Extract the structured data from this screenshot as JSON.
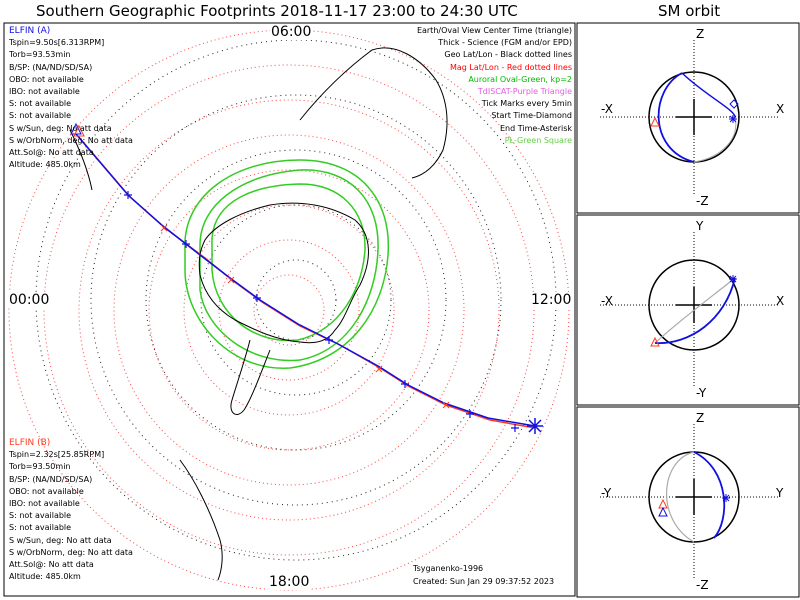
{
  "title": "Southern Geographic Footprints 2018-11-17 23:00 to 24:30 UTC",
  "orbit_panel_title": "SM orbit",
  "hour_labels": {
    "top": "06:00",
    "left": "00:00",
    "right": "12:00",
    "bottom": "18:00"
  },
  "satellite_a": {
    "name": "ELFIN (A)",
    "lines": [
      "Tspin=9.50s[6.313RPM]",
      "Torb=93.53min",
      "B/SP: (NA/ND/SD/SA)",
      "OBO: not available",
      "IBO: not available",
      "S: not available",
      "S: not available",
      "S w/Sun, deg: No att data",
      "S w/OrbNorm, deg: No att data",
      "Att.Sol@: No att data",
      "Altitude: 485.0km"
    ]
  },
  "satellite_b": {
    "name": "ELFIN (B)",
    "lines": [
      "Tspin=2.32s[25.85RPM]",
      "Torb=93.50min",
      "B/SP: (NA/ND/SD/SA)",
      "OBO: not available",
      "IBO: not available",
      "S: not available",
      "S: not available",
      "S w/Sun, deg: No att data",
      "S w/OrbNorm, deg: No att data",
      "Att.Sol@: No att data",
      "Altitude: 485.0km"
    ]
  },
  "legend": [
    {
      "text": "Earth/Oval View Center Time (triangle)",
      "color": "#000000"
    },
    {
      "text": "Thick - Science (FGM and/or EPD)",
      "color": "#000000"
    },
    {
      "text": "Geo Lat/Lon - Black dotted lines",
      "color": "#000000"
    },
    {
      "text": "Mag Lat/Lon - Red dotted lines",
      "color": "#ff0000"
    },
    {
      "text": "Auroral Oval-Green, kp=2",
      "color": "#00bb00"
    },
    {
      "text": "TdISCAT-Purple Triangle",
      "color": "#e060e0"
    },
    {
      "text": "Tick Marks every 5min",
      "color": "#000000"
    },
    {
      "text": "Start Time-Diamond",
      "color": "#000000"
    },
    {
      "text": "End Time-Asterisk",
      "color": "#000000"
    },
    {
      "text": "PL-Green Square",
      "color": "#66cc44"
    }
  ],
  "credits": {
    "model": "Tsyganenko-1996",
    "created": "Created: Sun Jan 29 09:37:52 2023"
  },
  "orbit_axes": {
    "xz": {
      "top": "Z",
      "bottom": "-Z",
      "left": "-X",
      "right": "X"
    },
    "xy": {
      "top": "Y",
      "bottom": "-Y",
      "left": "-X",
      "right": "X"
    },
    "yz": {
      "top": "Z",
      "bottom": "-Z",
      "left": "-Y",
      "right": "Y"
    }
  },
  "colors": {
    "satellite_a": "#1010e0",
    "satellite_b": "#ff3b1e",
    "auroral_oval": "#33cc22",
    "mag_grid": "#ff4444",
    "geo_grid": "#111111"
  }
}
